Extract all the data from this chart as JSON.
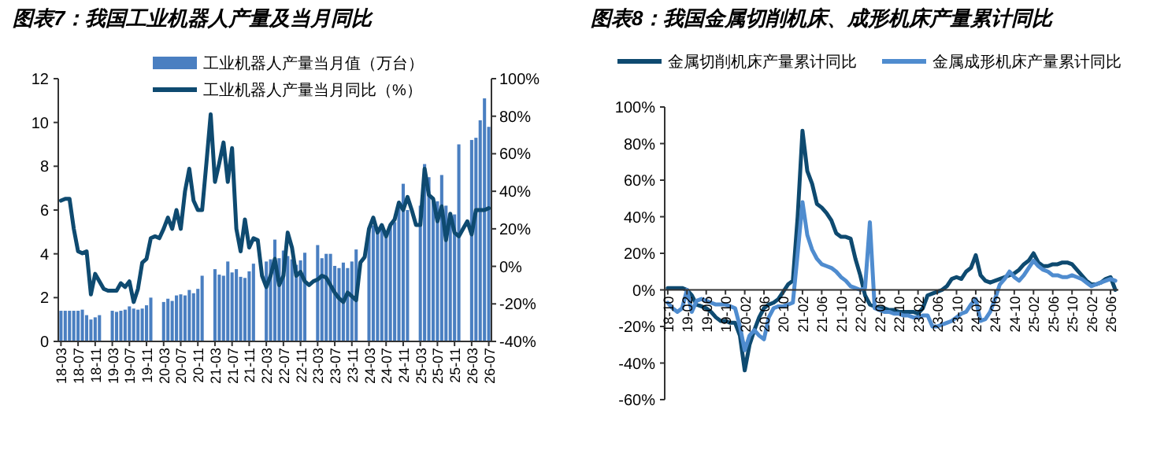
{
  "chart_data": [
    {
      "type": "bar",
      "title": "图表7：我国工业机器人产量及当月同比",
      "legend": "top left",
      "categories": [
        "18-03",
        null,
        null,
        null,
        "18-07",
        null,
        null,
        null,
        "18-11",
        null,
        null,
        null,
        "19-03",
        null,
        null,
        null,
        "19-07",
        null,
        null,
        null,
        "19-11",
        null,
        null,
        null,
        "20-03",
        null,
        null,
        null,
        "20-07",
        null,
        null,
        null,
        "20-11",
        null,
        null,
        null,
        "21-03",
        null,
        null,
        null,
        "21-07",
        null,
        null,
        null,
        "21-11",
        null,
        null,
        null,
        "22-03",
        null,
        null,
        null,
        "22-07",
        null,
        null,
        null,
        "22-11",
        null,
        null,
        null,
        "23-03",
        null,
        null,
        null,
        "23-07",
        null,
        null,
        null,
        "23-11",
        null,
        null,
        null,
        "24-03",
        null,
        null,
        null,
        "24-07",
        null,
        null,
        null,
        "24-11",
        null,
        null,
        null,
        "25-03",
        null,
        null,
        null,
        "25-07",
        null,
        null,
        null,
        "25-11",
        null,
        null,
        null,
        "26-03",
        null,
        null,
        null,
        "26-07"
      ],
      "ylim": [
        0,
        12
      ],
      "yticks": [
        0,
        2,
        4,
        6,
        8,
        10,
        12
      ],
      "y2lim": [
        -40,
        100
      ],
      "y2ticks": [
        {
          "value": -40,
          "label": "-40%"
        },
        {
          "value": -20,
          "label": "-20%"
        },
        {
          "value": 0,
          "label": "0%"
        },
        {
          "value": 20,
          "label": "20%"
        },
        {
          "value": 40,
          "label": "40%"
        },
        {
          "value": 60,
          "label": "60%"
        },
        {
          "value": 80,
          "label": "80%"
        },
        {
          "value": 100,
          "label": "100%"
        }
      ],
      "series": [
        {
          "name": "工业机器人产量当月值（万台）",
          "color": "#4a7fc1",
          "values": [
            1.4,
            1.4,
            1.4,
            1.4,
            1.4,
            1.45,
            1.2,
            1.0,
            1.1,
            1.2,
            null,
            null,
            1.4,
            1.35,
            1.4,
            1.45,
            1.6,
            1.5,
            1.45,
            1.5,
            1.65,
            2.0,
            null,
            null,
            1.8,
            1.95,
            1.85,
            2.1,
            2.15,
            2.1,
            2.35,
            2.2,
            2.4,
            3.0,
            null,
            null,
            3.3,
            3.05,
            3.0,
            3.65,
            3.15,
            3.3,
            2.95,
            2.9,
            3.2,
            3.55,
            null,
            null,
            3.65,
            3.75,
            4.65,
            3.8,
            4.15,
            3.9,
            3.75,
            3.5,
            3.7,
            4.05,
            null,
            null,
            4.4,
            3.8,
            4.0,
            4.0,
            3.45,
            3.35,
            3.6,
            3.35,
            3.65,
            4.2,
            null,
            null,
            5.1,
            5.3,
            5.15,
            5.2,
            5.0,
            5.3,
            5.45,
            6.2,
            7.2,
            6.0,
            null,
            null,
            6.2,
            8.1,
            7.5,
            6.4,
            6.4,
            7.6,
            6.2,
            5.6,
            5.8,
            9.0,
            null,
            null,
            9.2,
            9.3,
            10.1,
            11.1,
            9.8
          ]
        },
        {
          "name": "工业机器人产量当月同比（%）",
          "type": "line",
          "axis": "y2",
          "color": "#0e4a70",
          "values": [
            35,
            36,
            36,
            20,
            8,
            7,
            8,
            -15,
            -4,
            -8,
            -12,
            -13,
            -13,
            -13,
            -9,
            -11,
            -8,
            -19,
            -12,
            2,
            4,
            15,
            16,
            15,
            20,
            26,
            20,
            30,
            20,
            40,
            52,
            35,
            30,
            30,
            55,
            81,
            45,
            55,
            66,
            45,
            63,
            20,
            8,
            25,
            10,
            15,
            14,
            -5,
            -11,
            -5,
            4,
            -10,
            -5,
            18,
            10,
            -5,
            -3,
            -8,
            -10,
            -8,
            -7,
            -5,
            -6,
            -10,
            -14,
            -17,
            -19,
            -14,
            -16,
            -18,
            2,
            5,
            20,
            26,
            18,
            22,
            16,
            22,
            25,
            34,
            30,
            37,
            30,
            22,
            22,
            52,
            38,
            36,
            24,
            32,
            14,
            28,
            18,
            16,
            20,
            24,
            17,
            30,
            30,
            30,
            31
          ]
        }
      ]
    },
    {
      "type": "line",
      "title": "图表8：我国金属切削机床、成形机床产量累计同比",
      "legend": "top",
      "categories": [
        "18-10",
        null,
        null,
        null,
        "19-02",
        null,
        null,
        null,
        "19-06",
        null,
        null,
        null,
        "19-10",
        null,
        null,
        null,
        "20-02",
        null,
        null,
        null,
        "20-06",
        null,
        null,
        null,
        "20-10",
        null,
        null,
        null,
        "21-02",
        null,
        null,
        null,
        "21-06",
        null,
        null,
        null,
        "21-10",
        null,
        null,
        null,
        "22-02",
        null,
        null,
        null,
        "22-06",
        null,
        null,
        null,
        "22-10",
        null,
        null,
        null,
        "23-02",
        null,
        null,
        null,
        "23-06",
        null,
        null,
        null,
        "23-10",
        null,
        null,
        null,
        "24-02",
        null,
        null,
        null,
        "24-06",
        null,
        null,
        null,
        "24-10",
        null,
        null,
        null,
        "25-02",
        null,
        null,
        null,
        "25-06",
        null,
        null,
        null,
        "25-10",
        null,
        null,
        null,
        "26-02",
        null,
        null,
        null,
        "26-06",
        null
      ],
      "ylim": [
        -60,
        100
      ],
      "yticks": [
        {
          "value": -60,
          "label": "-60%"
        },
        {
          "value": -40,
          "label": "-40%"
        },
        {
          "value": -20,
          "label": "-20%"
        },
        {
          "value": 0,
          "label": "0%"
        },
        {
          "value": 20,
          "label": "20%"
        },
        {
          "value": 40,
          "label": "40%"
        },
        {
          "value": 60,
          "label": "60%"
        },
        {
          "value": 80,
          "label": "80%"
        },
        {
          "value": 100,
          "label": "100%"
        }
      ],
      "series": [
        {
          "name": "金属切削机床产量累计同比",
          "color": "#0e4a70",
          "values": [
            1,
            1,
            1,
            1,
            0,
            -3,
            -8,
            -9,
            -10,
            -12,
            -15,
            -17,
            -17,
            -18,
            -18,
            -25,
            -44,
            -30,
            -22,
            -15,
            -10,
            -8,
            -7,
            -5,
            -1,
            3,
            5,
            40,
            87,
            65,
            58,
            47,
            45,
            42,
            38,
            31,
            29,
            29,
            28,
            17,
            8,
            -3,
            -8,
            -9,
            -10,
            -10,
            -11,
            -11,
            -12,
            -12,
            -12,
            -12,
            -13,
            -10,
            -3,
            -2,
            -1,
            0,
            2,
            6,
            7,
            6,
            10,
            12,
            19,
            8,
            5,
            4,
            5,
            6,
            7,
            8,
            9,
            11,
            14,
            16,
            20,
            15,
            13,
            13,
            14,
            14,
            15,
            15,
            14,
            11,
            8,
            5,
            3,
            3,
            4,
            6,
            7,
            0
          ]
        },
        {
          "name": "金属成形机床产量累计同比",
          "color": "#4f8ccf",
          "values": [
            -7,
            -10,
            -12,
            -10,
            0,
            -12,
            -6,
            -5,
            -6,
            -7,
            -8,
            -8,
            -8,
            -9,
            -10,
            -20,
            -33,
            -25,
            -22,
            -25,
            -27,
            -15,
            -10,
            -9,
            -9,
            -8,
            -7,
            20,
            48,
            30,
            22,
            17,
            14,
            13,
            12,
            10,
            7,
            5,
            2,
            1,
            0,
            1,
            37,
            -10,
            -11,
            -12,
            -12,
            -13,
            -13,
            -14,
            -14,
            -15,
            -15,
            -14,
            -14,
            -20,
            -20,
            -19,
            -18,
            -17,
            -15,
            -13,
            -12,
            -8,
            -5,
            -17,
            -16,
            -12,
            -5,
            3,
            6,
            10,
            7,
            5,
            8,
            12,
            16,
            13,
            11,
            10,
            8,
            8,
            7,
            7,
            8,
            7,
            6,
            4,
            2,
            3,
            4,
            5,
            6,
            5
          ]
        }
      ]
    }
  ]
}
